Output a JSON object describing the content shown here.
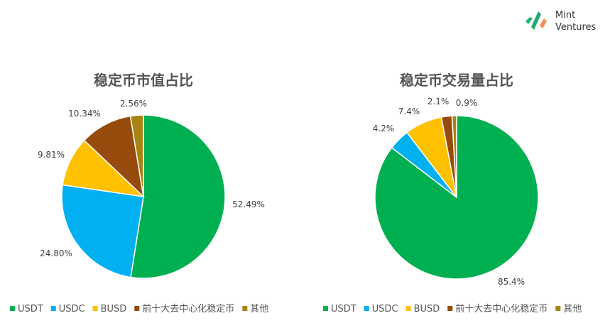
{
  "brand": {
    "line1": "Mint",
    "line2": "Ventures"
  },
  "chart_data": [
    {
      "type": "pie",
      "title": "稳定币市值占比",
      "categories": [
        "USDT",
        "USDC",
        "BUSD",
        "前十大去中心化稳定币",
        "其他"
      ],
      "values": [
        52.49,
        24.8,
        9.81,
        10.34,
        2.56
      ],
      "labels": [
        "52.49%",
        "24.80%",
        "9.81%",
        "10.34%",
        "2.56%"
      ],
      "colors": [
        "#00b050",
        "#00b0f0",
        "#ffc000",
        "#964b0c",
        "#a88412"
      ],
      "legend": "bottom"
    },
    {
      "type": "pie",
      "title": "稳定币交易量占比",
      "categories": [
        "USDT",
        "USDC",
        "BUSD",
        "前十大去中心化稳定币",
        "其他"
      ],
      "values": [
        85.4,
        4.2,
        7.4,
        2.1,
        0.9
      ],
      "labels": [
        "85.4%",
        "4.2%",
        "7.4%",
        "2.1%",
        "0.9%"
      ],
      "colors": [
        "#00b050",
        "#00b0f0",
        "#ffc000",
        "#964b0c",
        "#a88412"
      ],
      "legend": "bottom"
    }
  ]
}
